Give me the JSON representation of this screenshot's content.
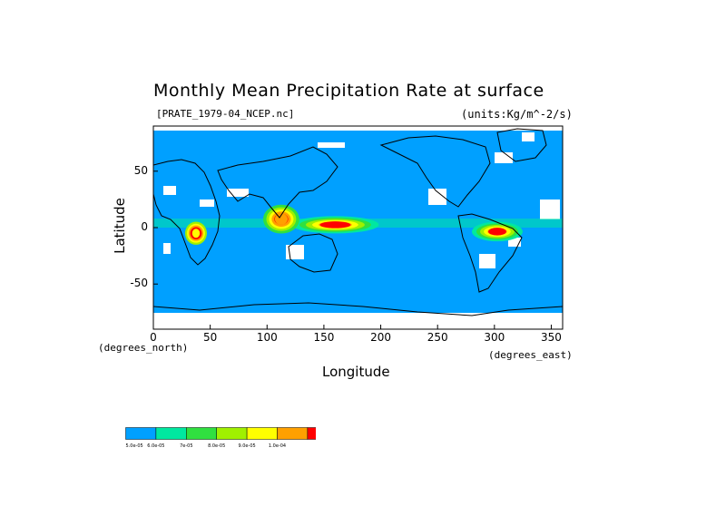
{
  "chart_data": {
    "type": "heatmap",
    "title": "Monthly Mean Precipitation Rate at surface",
    "subtitle_left": "[PRATE_1979-04_NCEP.nc]",
    "subtitle_right": "(units:Kg/m^-2/s)",
    "xlabel": "Longitude",
    "ylabel": "Latitude",
    "x_unit": "(degrees_east)",
    "y_unit": "(degrees_north)",
    "xlim": [
      0,
      360
    ],
    "ylim": [
      -90,
      90
    ],
    "x_ticks": [
      "0",
      "50",
      "100",
      "150",
      "200",
      "250",
      "300",
      "350"
    ],
    "y_ticks": [
      "50",
      "0",
      "-50"
    ],
    "colorbar": {
      "colors": [
        "#00a0ff",
        "#00e8a0",
        "#30e040",
        "#a0f000",
        "#ffff00",
        "#ffa000",
        "#ff0000"
      ],
      "labels": [
        "5.0e-05",
        "6.0e-05",
        "7e-05",
        "8.0e-05",
        "9.0e-05",
        "1.0e-04",
        "∞"
      ]
    },
    "heavy_regions": [
      {
        "lon": [
          130,
          190
        ],
        "lat": [
          -5,
          10
        ],
        "level": 7
      },
      {
        "lon": [
          285,
          320
        ],
        "lat": [
          -12,
          5
        ],
        "level": 7
      },
      {
        "lon": [
          100,
          125
        ],
        "lat": [
          -5,
          20
        ],
        "level": 6
      },
      {
        "lon": [
          30,
          45
        ],
        "lat": [
          -15,
          5
        ],
        "level": 5
      }
    ]
  }
}
